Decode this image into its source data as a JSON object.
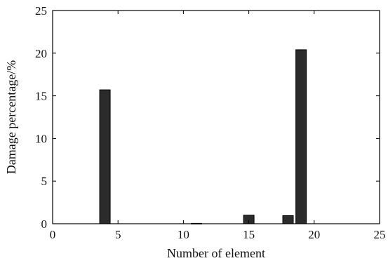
{
  "chart_data": {
    "type": "bar",
    "title": "",
    "xlabel": "Number of element",
    "ylabel": "Damage percentage/%",
    "xlim": [
      0,
      25
    ],
    "ylim": [
      0,
      25
    ],
    "xticks": [
      0,
      5,
      10,
      15,
      20,
      25
    ],
    "yticks": [
      0,
      5,
      10,
      15,
      20,
      25
    ],
    "grid": false,
    "bar_color": "#2b2b2b",
    "x": [
      4,
      11,
      15,
      18,
      19
    ],
    "values": [
      15.7,
      0.05,
      1.0,
      0.95,
      20.4
    ]
  }
}
